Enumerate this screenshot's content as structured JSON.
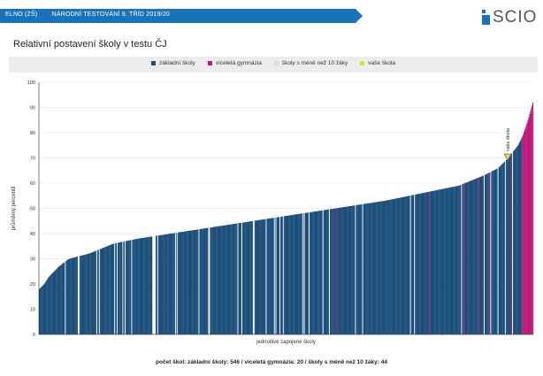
{
  "header": {
    "school": "ELNO (ZŠ)",
    "test": "NÁRODNÍ TESTOVÁNÍ 9. TŘÍD 2019/20",
    "logo": "SCIO"
  },
  "page_title": "Relativní postavení školy v testu ČJ",
  "colors": {
    "banner": "#1a73b8",
    "basic": "#1b4f7a",
    "gymnasium": "#c0187a",
    "small": "#ffffff",
    "yours": "#d8e03a"
  },
  "legend": [
    {
      "label": "základní školy",
      "color": "#1b4f7a"
    },
    {
      "label": "víceletá gymnázia",
      "color": "#c0187a"
    },
    {
      "label": "školy s méně než 10 žáky",
      "color": "#dddddd"
    },
    {
      "label": "vaše škola",
      "color": "#d8e03a"
    }
  ],
  "chart_data": {
    "type": "bar",
    "title": "Relativní postavení školy v testu ČJ",
    "xlabel": "jednotlivé zapojené školy",
    "ylabel": "průměrný percentil",
    "ylim": [
      0,
      100
    ],
    "yticks": [
      0,
      10,
      20,
      30,
      40,
      50,
      60,
      70,
      80,
      90,
      100
    ],
    "grid": true,
    "counts": {
      "basic": 546,
      "gymnasium": 20,
      "small": 44
    },
    "curve": [
      [
        0,
        18
      ],
      [
        0.01,
        20
      ],
      [
        0.02,
        23
      ],
      [
        0.04,
        27
      ],
      [
        0.06,
        30
      ],
      [
        0.1,
        32
      ],
      [
        0.15,
        36
      ],
      [
        0.2,
        38
      ],
      [
        0.3,
        41
      ],
      [
        0.4,
        44
      ],
      [
        0.5,
        47
      ],
      [
        0.6,
        50
      ],
      [
        0.7,
        53
      ],
      [
        0.8,
        57
      ],
      [
        0.85,
        59
      ],
      [
        0.9,
        63
      ],
      [
        0.93,
        66
      ],
      [
        0.95,
        70
      ],
      [
        0.97,
        75
      ],
      [
        0.98,
        79
      ],
      [
        0.99,
        85
      ],
      [
        1.0,
        92
      ]
    ],
    "your_school": {
      "label": "vaše škola",
      "value": 70
    }
  },
  "footer": "počet škol: základní školy: 546 / víceletá gymnázia: 20 / školy s méně než 10 žáky: 44"
}
